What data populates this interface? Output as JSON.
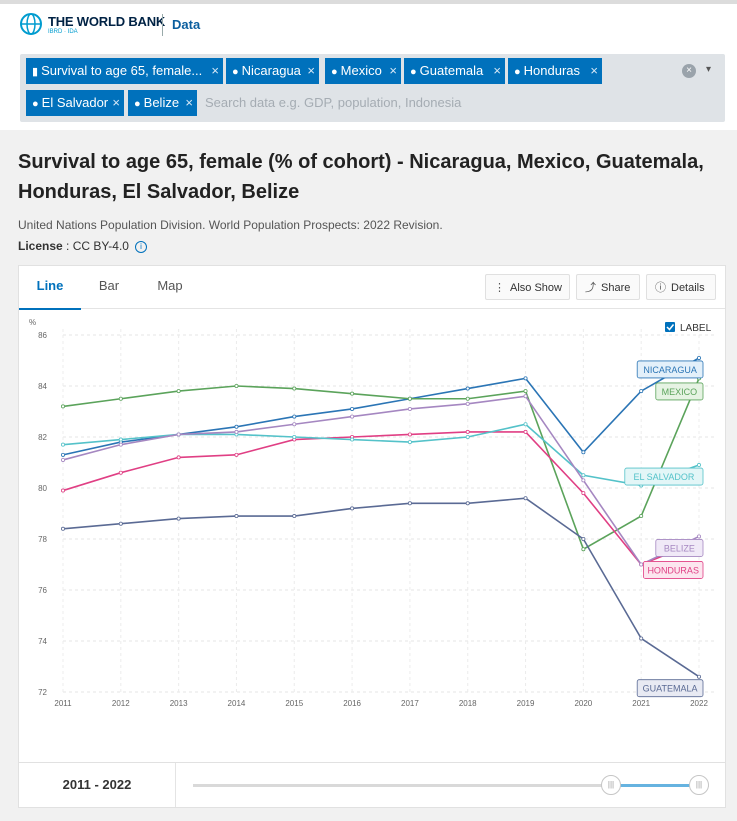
{
  "header": {
    "logo_title": "THE WORLD BANK",
    "logo_subtitle": "IBRD · IDA",
    "section_link": "Data"
  },
  "search": {
    "chips": [
      {
        "label": "Survival to age 65, female...",
        "kind": "indicator"
      },
      {
        "label": "Nicaragua",
        "kind": "country"
      },
      {
        "label": "Mexico",
        "kind": "country"
      },
      {
        "label": "Guatemala",
        "kind": "country"
      },
      {
        "label": "Honduras",
        "kind": "country"
      },
      {
        "label": "El Salvador",
        "kind": "country"
      },
      {
        "label": "Belize",
        "kind": "country"
      }
    ],
    "placeholder": "Search data e.g. GDP, population, Indonesia",
    "remove_glyph": "×",
    "clear_glyph": "×",
    "caret_glyph": "▾"
  },
  "page": {
    "title": "Survival to age 65, female (% of cohort) - Nicaragua, Mexico, Guatemala, Honduras, El Salvador, Belize",
    "source": "United Nations Population Division. World Population Prospects: 2022 Revision.",
    "license_label": "License",
    "license_value": " : CC BY-4.0"
  },
  "tabs": [
    "Line",
    "Bar",
    "Map"
  ],
  "toolbar": {
    "also_show": "Also Show",
    "share": "Share",
    "details": "Details"
  },
  "label_toggle": "LABEL",
  "range": {
    "label": "2011 - 2022"
  },
  "chart_data": {
    "type": "line",
    "title": "Survival to age 65, female (% of cohort)",
    "ylabel": "%",
    "xlabel": "",
    "ylim": [
      72,
      86
    ],
    "yticks": [
      72,
      74,
      76,
      78,
      80,
      82,
      84,
      86
    ],
    "x": [
      2011,
      2012,
      2013,
      2014,
      2015,
      2016,
      2017,
      2018,
      2019,
      2020,
      2021,
      2022
    ],
    "grid": true,
    "series": [
      {
        "name": "NICARAGUA",
        "color": "#2b75b5",
        "label_bg": "#e3f0fa",
        "values": [
          81.3,
          81.8,
          82.1,
          82.4,
          82.8,
          83.1,
          83.5,
          83.9,
          84.3,
          81.4,
          83.8,
          85.1
        ]
      },
      {
        "name": "MEXICO",
        "color": "#5ba35b",
        "label_bg": "#e6f3e3",
        "values": [
          83.2,
          83.5,
          83.8,
          84.0,
          83.9,
          83.7,
          83.5,
          83.5,
          83.8,
          77.6,
          78.9,
          84.3
        ]
      },
      {
        "name": "GUATEMALA",
        "color": "#5a6a94",
        "label_bg": "#e8eaf3",
        "values": [
          78.4,
          78.6,
          78.8,
          78.9,
          78.9,
          79.2,
          79.4,
          79.4,
          79.6,
          78.0,
          74.1,
          72.6
        ]
      },
      {
        "name": "HONDURAS",
        "color": "#e03f84",
        "label_bg": "#fce6ef",
        "values": [
          79.9,
          80.6,
          81.2,
          81.3,
          81.9,
          82.0,
          82.1,
          82.2,
          82.2,
          79.8,
          77.0,
          77.9
        ]
      },
      {
        "name": "EL SALVADOR",
        "color": "#54c2c9",
        "label_bg": "#e3f6f7",
        "values": [
          81.7,
          81.9,
          82.1,
          82.1,
          82.0,
          81.9,
          81.8,
          82.0,
          82.5,
          80.5,
          80.1,
          80.9
        ]
      },
      {
        "name": "BELIZE",
        "color": "#a587c1",
        "label_bg": "#f0e9f7",
        "values": [
          81.1,
          81.7,
          82.1,
          82.2,
          82.5,
          82.8,
          83.1,
          83.3,
          83.6,
          80.3,
          77.0,
          78.1
        ]
      }
    ]
  }
}
